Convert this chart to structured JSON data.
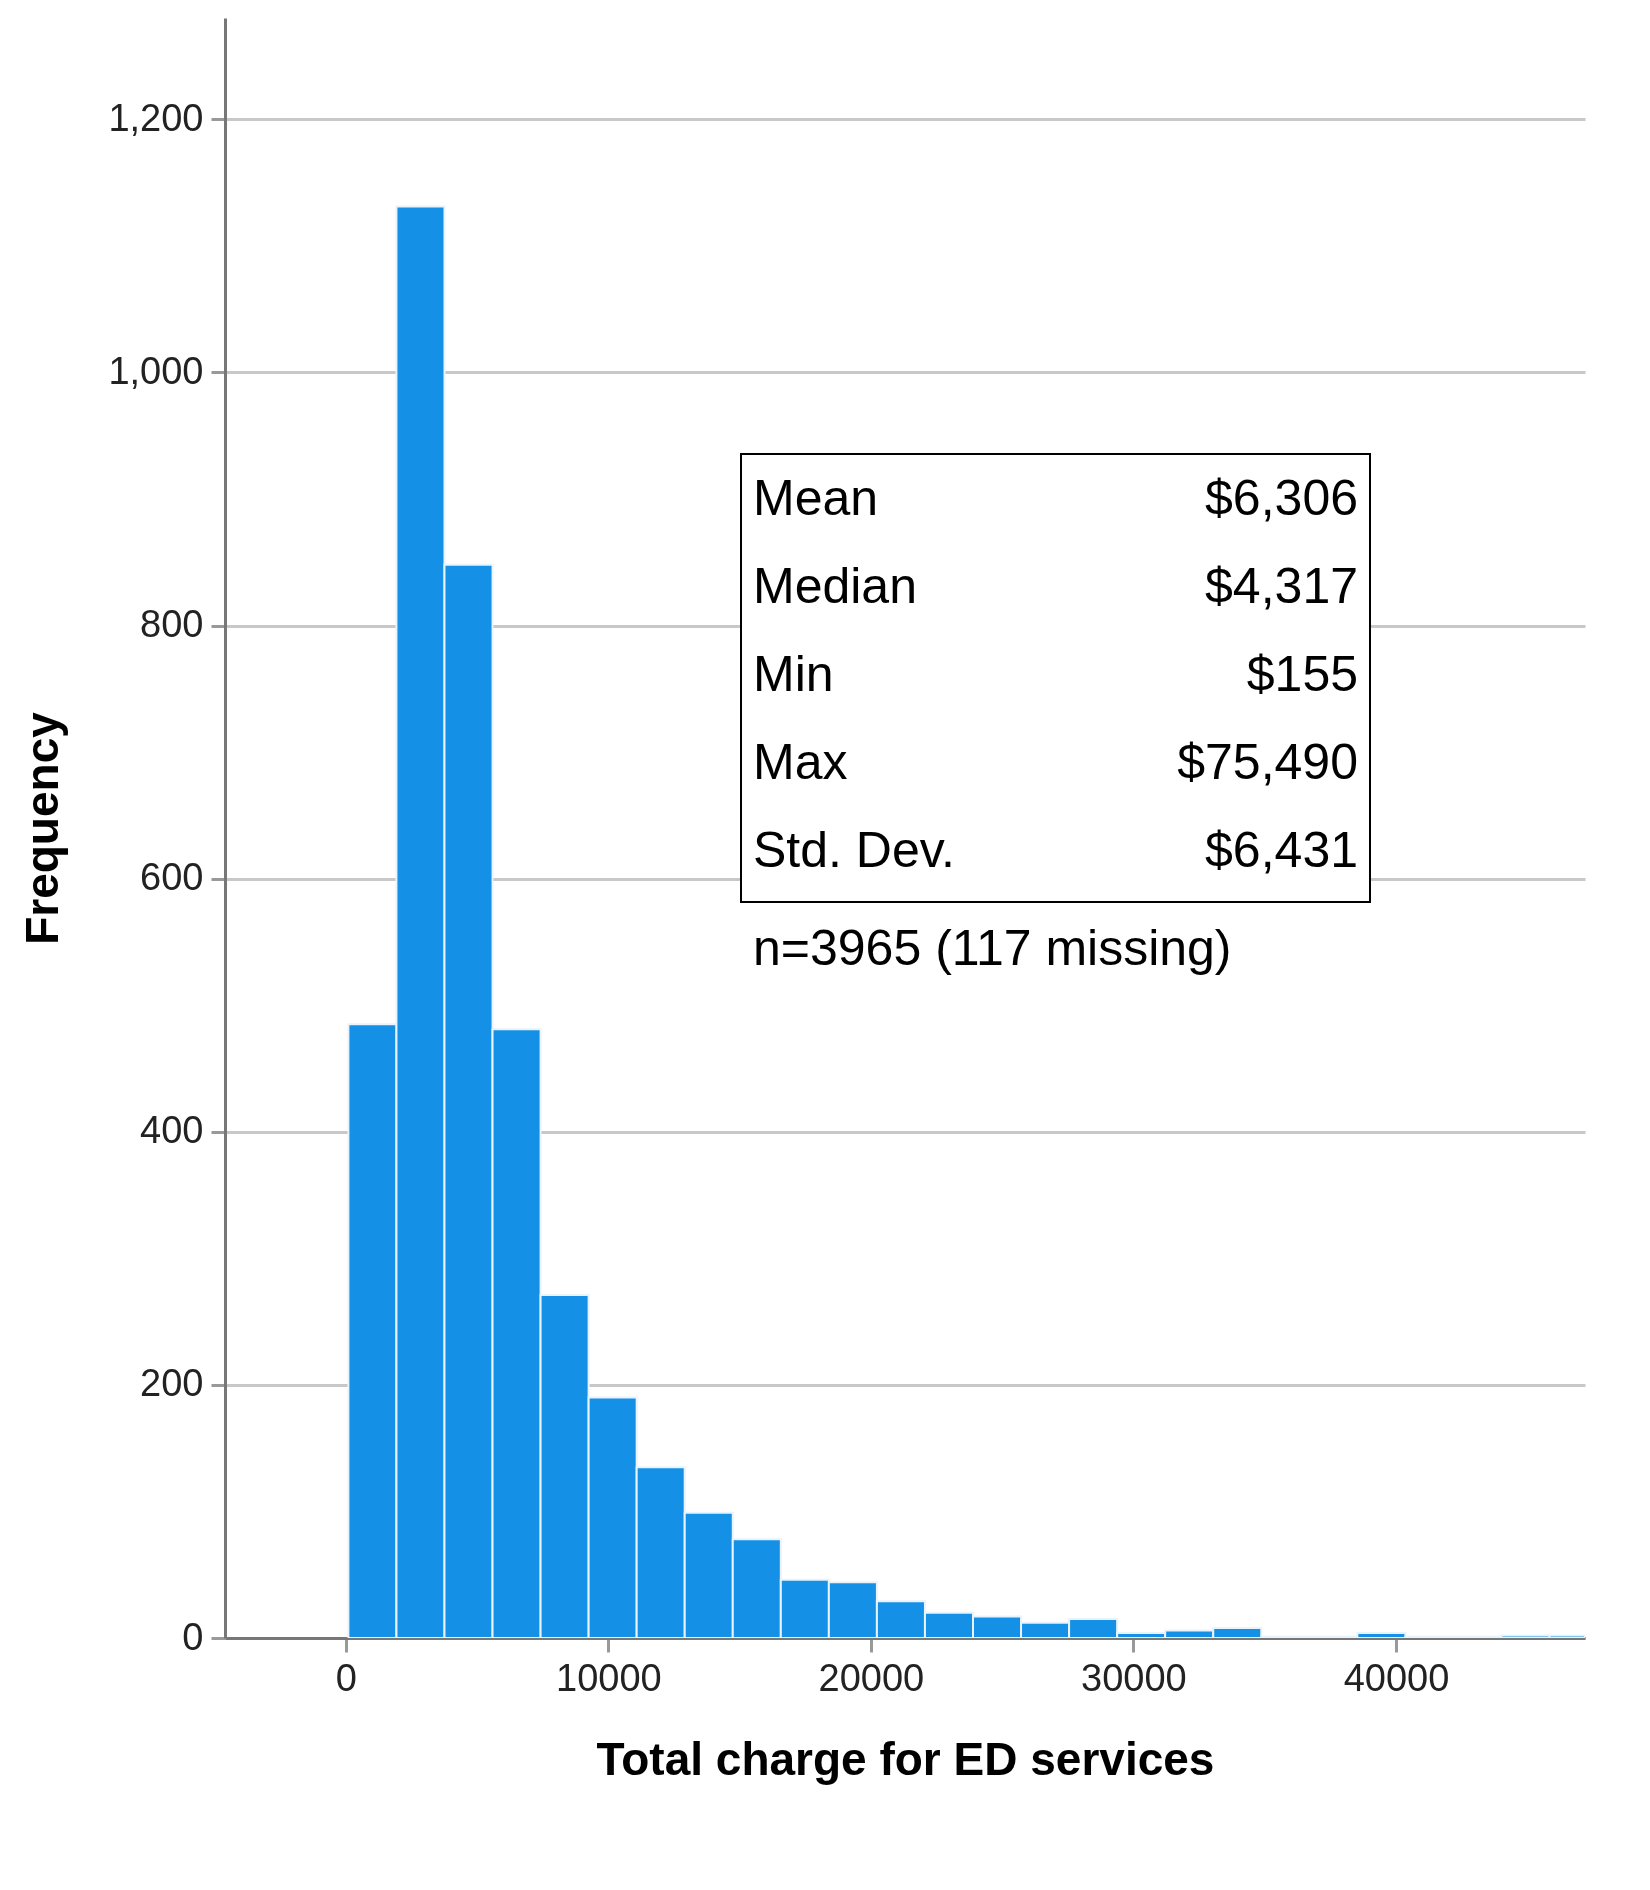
{
  "chart_data": {
    "type": "histogram",
    "xlabel": "Total charge for ED services",
    "ylabel": "Frequency",
    "bins": [
      100,
      1930,
      3760,
      5590,
      7420,
      9250,
      11080,
      12910,
      14740,
      16570,
      18400,
      20230,
      22060,
      23890,
      25720,
      27550,
      29380,
      31210,
      33040,
      34870,
      36700,
      38530,
      40360,
      42190,
      44020,
      45850,
      47200
    ],
    "values": [
      485,
      1131,
      848,
      481,
      271,
      190,
      135,
      99,
      78,
      46,
      44,
      29,
      20,
      17,
      12,
      15,
      4,
      6,
      8,
      1,
      1,
      4,
      1,
      1,
      2,
      2
    ],
    "color": "#1490e6",
    "xlim": [
      -4600,
      47200
    ],
    "xticks": [
      0,
      10000,
      20000,
      30000,
      40000
    ],
    "ylim": [
      0,
      1280
    ],
    "yticks": [
      0,
      200,
      400,
      600,
      800,
      {
        "value": 1000,
        "label": "1,000"
      },
      {
        "value": 1200,
        "label": "1,200"
      }
    ],
    "grid": "y",
    "annotations": [
      "Mean",
      "$6,306",
      "Median",
      "$4,317",
      "Min",
      "$155",
      "Max",
      "$75,490",
      "Std. Dev.",
      "$6,431",
      "n=3965  (117 missing)"
    ]
  }
}
